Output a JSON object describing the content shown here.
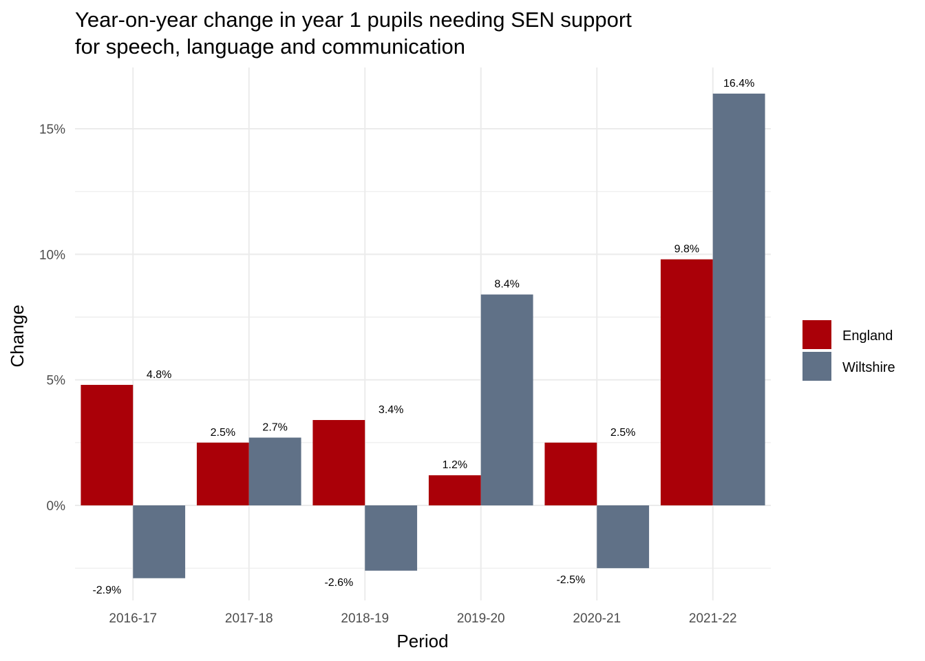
{
  "chart_data": {
    "type": "bar",
    "title_line1": "Year-on-year change in year 1 pupils needing SEN support",
    "title_line2": "for speech, language and communication",
    "xlabel": "Period",
    "ylabel": "Change",
    "categories": [
      "2016-17",
      "2017-18",
      "2018-19",
      "2019-20",
      "2020-21",
      "2021-22"
    ],
    "series": [
      {
        "name": "England",
        "color": "#aa0008",
        "values": [
          4.8,
          2.5,
          3.4,
          1.2,
          2.5,
          9.8
        ]
      },
      {
        "name": "Wiltshire",
        "color": "#607187",
        "values": [
          -2.9,
          2.7,
          -2.6,
          8.4,
          -2.5,
          16.4
        ]
      }
    ],
    "data_labels": [
      {
        "category": "2016-17",
        "labels": [
          "4.8%",
          "-2.9%"
        ]
      },
      {
        "category": "2017-18",
        "labels": [
          "2.7%",
          "2.5%"
        ]
      },
      {
        "category": "2018-19",
        "labels": [
          "3.4%",
          "-2.6%"
        ]
      },
      {
        "category": "2019-20",
        "labels": [
          "8.4%",
          "1.2%"
        ]
      },
      {
        "category": "2020-21",
        "labels": [
          "2.5%",
          "-2.5%"
        ]
      },
      {
        "category": "2021-22",
        "labels": [
          "16.4%",
          "9.8%"
        ]
      }
    ],
    "y_ticks": [
      0,
      5,
      10,
      15
    ],
    "y_tick_labels": [
      "0%",
      "5%",
      "10%",
      "15%"
    ],
    "ylim": [
      -3.7,
      17.2
    ],
    "grid": true,
    "legend_position": "right"
  }
}
